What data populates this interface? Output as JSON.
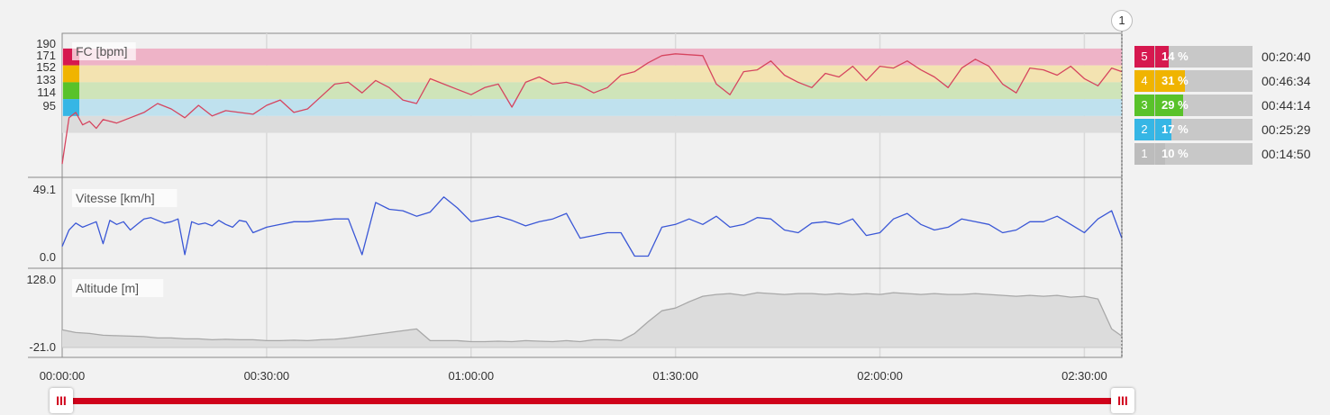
{
  "chart_data": [
    {
      "type": "line",
      "label": "FC [bpm]",
      "color": "#d6455f",
      "ylim": [
        55,
        195
      ],
      "ticks": [
        "190",
        "171",
        "152",
        "133",
        "114",
        "95"
      ],
      "zones": [
        {
          "from": 171,
          "to": 190,
          "color": "#eeb3c7"
        },
        {
          "from": 152,
          "to": 171,
          "color": "#f3e3b1"
        },
        {
          "from": 133,
          "to": 152,
          "color": "#cfe4b9"
        },
        {
          "from": 114,
          "to": 133,
          "color": "#bfe1ee"
        },
        {
          "from": 95,
          "to": 114,
          "color": "#dcdcdc"
        }
      ],
      "zone_legend_colors": [
        "#d6184f",
        "#f0b400",
        "#59c22a",
        "#36b6e5"
      ],
      "x": [
        0,
        1,
        2,
        3,
        4,
        5,
        6,
        8,
        10,
        12,
        14,
        16,
        18,
        20,
        22,
        24,
        26,
        28,
        30,
        32,
        34,
        36,
        38,
        40,
        42,
        44,
        46,
        48,
        50,
        52,
        54,
        56,
        58,
        60,
        62,
        64,
        66,
        68,
        70,
        72,
        74,
        76,
        78,
        80,
        82,
        84,
        86,
        88,
        90,
        92,
        94,
        96,
        98,
        100,
        102,
        104,
        106,
        108,
        110,
        112,
        114,
        116,
        118,
        120,
        122,
        124,
        126,
        128,
        130,
        132,
        134,
        136,
        138,
        140,
        142,
        144,
        146,
        148,
        150,
        152,
        154,
        155.5
      ],
      "values": [
        60,
        112,
        118,
        104,
        108,
        100,
        110,
        106,
        112,
        118,
        128,
        122,
        112,
        126,
        114,
        120,
        118,
        116,
        126,
        132,
        118,
        122,
        136,
        150,
        152,
        140,
        154,
        146,
        132,
        128,
        156,
        150,
        144,
        138,
        146,
        150,
        124,
        152,
        158,
        150,
        152,
        148,
        140,
        146,
        160,
        164,
        174,
        182,
        184,
        183,
        182,
        150,
        138,
        164,
        166,
        176,
        160,
        152,
        146,
        162,
        158,
        170,
        154,
        170,
        168,
        176,
        166,
        158,
        146,
        168,
        178,
        170,
        150,
        140,
        168,
        166,
        160,
        170,
        156,
        148,
        168,
        164
      ]
    },
    {
      "type": "line",
      "label": "Vitesse [km/h]",
      "color": "#3a57d6",
      "ylim": [
        0.0,
        49.1
      ],
      "ticks": [
        "49.1",
        "0.0"
      ],
      "x": [
        0,
        1,
        2,
        3,
        4,
        5,
        6,
        7,
        8,
        9,
        10,
        11,
        12,
        13,
        14,
        15,
        16,
        17,
        18,
        19,
        20,
        21,
        22,
        23,
        24,
        25,
        26,
        27,
        28,
        30,
        32,
        34,
        36,
        38,
        40,
        42,
        44,
        46,
        48,
        50,
        52,
        54,
        56,
        58,
        60,
        62,
        64,
        66,
        68,
        70,
        72,
        74,
        76,
        78,
        80,
        82,
        84,
        86,
        88,
        90,
        92,
        94,
        96,
        98,
        100,
        102,
        104,
        106,
        108,
        110,
        112,
        114,
        116,
        118,
        120,
        122,
        124,
        126,
        128,
        130,
        132,
        134,
        136,
        138,
        140,
        142,
        144,
        146,
        148,
        150,
        152,
        154,
        155.5
      ],
      "values": [
        8,
        20,
        25,
        22,
        24,
        26,
        10,
        27,
        24,
        26,
        20,
        24,
        28,
        29,
        27,
        25,
        26,
        28,
        2,
        26,
        24,
        25,
        23,
        27,
        24,
        22,
        27,
        26,
        18,
        22,
        24,
        26,
        26,
        27,
        28,
        28,
        2,
        40,
        35,
        34,
        30,
        33,
        44,
        36,
        26,
        28,
        30,
        27,
        23,
        26,
        28,
        32,
        14,
        16,
        18,
        18,
        1,
        1,
        22,
        24,
        28,
        24,
        30,
        22,
        24,
        29,
        28,
        20,
        18,
        25,
        26,
        24,
        28,
        16,
        18,
        28,
        32,
        24,
        20,
        22,
        28,
        26,
        24,
        18,
        20,
        26,
        26,
        30,
        24,
        18,
        28,
        34,
        14
      ]
    },
    {
      "type": "area",
      "label": "Altitude [m]",
      "color": "#a8a8a8",
      "fill": "#dcdcdc",
      "ylim": [
        -21.0,
        128.0
      ],
      "ticks": [
        "128.0",
        "-21.0"
      ],
      "x": [
        0,
        2,
        4,
        6,
        8,
        10,
        12,
        14,
        16,
        18,
        20,
        22,
        24,
        26,
        28,
        30,
        32,
        34,
        36,
        38,
        40,
        42,
        44,
        46,
        48,
        50,
        52,
        54,
        56,
        58,
        60,
        62,
        64,
        66,
        68,
        70,
        72,
        74,
        76,
        78,
        80,
        82,
        84,
        86,
        88,
        90,
        92,
        94,
        96,
        98,
        100,
        102,
        104,
        106,
        108,
        110,
        112,
        114,
        116,
        118,
        120,
        122,
        124,
        126,
        128,
        130,
        132,
        134,
        136,
        138,
        140,
        142,
        144,
        146,
        148,
        150,
        152,
        154,
        155.5
      ],
      "values": [
        18,
        12,
        10,
        6,
        5,
        4,
        3,
        0,
        0,
        -2,
        -2,
        -4,
        -3,
        -4,
        -4,
        -6,
        -6,
        -5,
        -6,
        -4,
        -3,
        0,
        4,
        8,
        12,
        16,
        20,
        -6,
        -6,
        -6,
        -8,
        -8,
        -7,
        -8,
        -6,
        -7,
        -8,
        -6,
        -8,
        -4,
        -4,
        -6,
        10,
        36,
        60,
        66,
        80,
        92,
        96,
        98,
        94,
        100,
        98,
        96,
        98,
        98,
        96,
        98,
        96,
        98,
        96,
        100,
        98,
        96,
        98,
        96,
        96,
        98,
        96,
        94,
        92,
        94,
        92,
        94,
        90,
        92,
        86,
        20,
        4
      ]
    }
  ],
  "x_axis": {
    "ticks": [
      "00:00:00",
      "00:30:00",
      "01:00:00",
      "01:30:00",
      "02:00:00",
      "02:30:00"
    ],
    "max_minutes": 155.5
  },
  "zones_summary": [
    {
      "zone": "5",
      "percent": "14 %",
      "time": "00:20:40",
      "color": "#d6184f",
      "fraction": 0.14
    },
    {
      "zone": "4",
      "percent": "31 %",
      "time": "00:46:34",
      "color": "#f0b400",
      "fraction": 0.31
    },
    {
      "zone": "3",
      "percent": "29 %",
      "time": "00:44:14",
      "color": "#59c22a",
      "fraction": 0.29
    },
    {
      "zone": "2",
      "percent": "17 %",
      "time": "00:25:29",
      "color": "#36b6e5",
      "fraction": 0.17
    },
    {
      "zone": "1",
      "percent": "10 %",
      "time": "00:14:50",
      "color": "#bcbcbc",
      "fraction": 0.1
    }
  ],
  "marker": {
    "label": "1"
  },
  "range_slider": {
    "handle_glyph": "III",
    "color": "#d0021b"
  }
}
